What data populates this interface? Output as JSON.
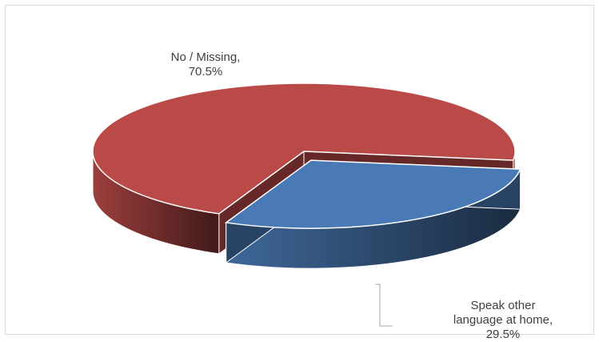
{
  "chart_data": {
    "type": "pie",
    "style": "3d",
    "slices": [
      {
        "label": "No / Missing",
        "value": 70.5,
        "percent_text": "70.5%",
        "color": "#b94a48",
        "exploded": false
      },
      {
        "label": "Speak other language at home",
        "value": 29.5,
        "percent_text": "29.5%",
        "color": "#4a7ab5",
        "exploded": true
      }
    ],
    "data_labels": {
      "no": {
        "line1": "No / Missing,",
        "line2": "70.5%"
      },
      "yes": {
        "line1": "Speak other",
        "line2": "language at home,",
        "line3": "29.5%"
      }
    },
    "legend": "none"
  }
}
